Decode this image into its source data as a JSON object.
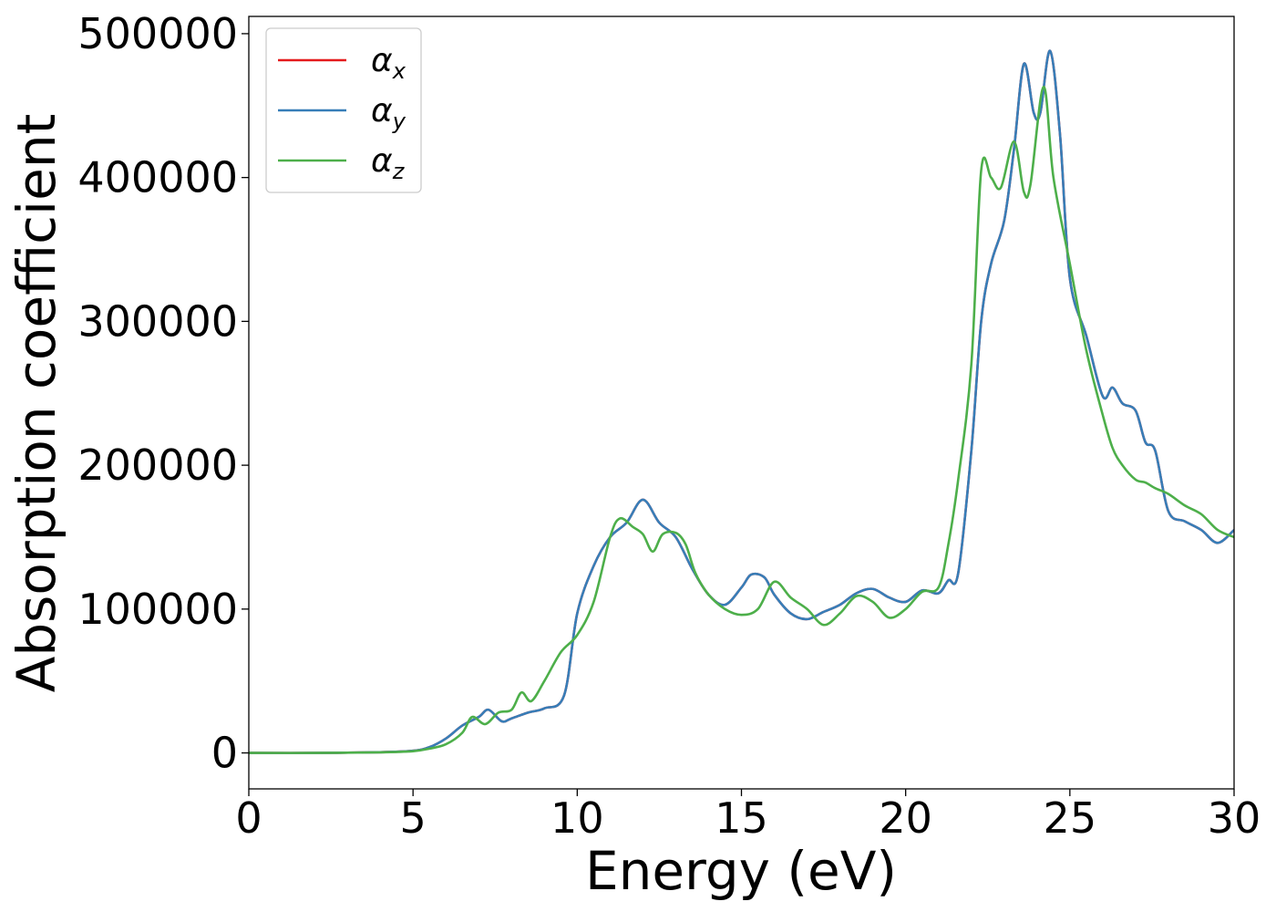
{
  "chart_data": {
    "type": "line",
    "xlabel": "Energy (eV)",
    "ylabel": "Absorption coefficient",
    "xlim": [
      0,
      30
    ],
    "ylim": [
      -25000,
      512000
    ],
    "xticks": [
      0,
      5,
      10,
      15,
      20,
      25,
      30
    ],
    "yticks": [
      0,
      100000,
      200000,
      300000,
      400000,
      500000
    ],
    "grid": false,
    "legend": {
      "position": "top-left",
      "entries": [
        {
          "symbol": "α",
          "sub": "x",
          "color": "#e41a1c"
        },
        {
          "symbol": "α",
          "sub": "y",
          "color": "#377eb8"
        },
        {
          "symbol": "α",
          "sub": "z",
          "color": "#4daf4a"
        }
      ]
    },
    "series": [
      {
        "name": "α_x",
        "color": "#e41a1c",
        "x": [
          0,
          2,
          4,
          5,
          5.5,
          6,
          6.5,
          7,
          7.3,
          7.7,
          8,
          8.5,
          9,
          9.6,
          10,
          10.5,
          11,
          11.5,
          12,
          12.5,
          13,
          13.5,
          14,
          14.5,
          15,
          15.3,
          15.7,
          16,
          16.5,
          17,
          17.5,
          18,
          18.5,
          19,
          19.5,
          20,
          20.5,
          21,
          21.3,
          21.6,
          22,
          22.3,
          22.6,
          23,
          23.3,
          23.6,
          23.9,
          24.1,
          24.4,
          24.7,
          25,
          25.5,
          26,
          26.3,
          26.6,
          27,
          27.3,
          27.6,
          28,
          28.5,
          29,
          29.5,
          30
        ],
        "y": [
          0,
          0,
          500,
          1500,
          4000,
          10000,
          19000,
          25000,
          30000,
          22000,
          24000,
          28000,
          31000,
          40000,
          97000,
          130000,
          150000,
          160000,
          176000,
          160000,
          150000,
          128000,
          110000,
          103000,
          115000,
          124000,
          122000,
          110000,
          97000,
          93000,
          98000,
          103000,
          111000,
          114000,
          108000,
          105000,
          113000,
          111000,
          120000,
          125000,
          210000,
          300000,
          340000,
          370000,
          420000,
          479000,
          445000,
          445000,
          488000,
          430000,
          330000,
          290000,
          248000,
          254000,
          243000,
          238000,
          216000,
          210000,
          168000,
          161000,
          155000,
          146000,
          155000
        ]
      },
      {
        "name": "α_y",
        "color": "#377eb8",
        "x": [
          0,
          2,
          4,
          5,
          5.5,
          6,
          6.5,
          7,
          7.3,
          7.7,
          8,
          8.5,
          9,
          9.6,
          10,
          10.5,
          11,
          11.5,
          12,
          12.5,
          13,
          13.5,
          14,
          14.5,
          15,
          15.3,
          15.7,
          16,
          16.5,
          17,
          17.5,
          18,
          18.5,
          19,
          19.5,
          20,
          20.5,
          21,
          21.3,
          21.6,
          22,
          22.3,
          22.6,
          23,
          23.3,
          23.6,
          23.9,
          24.1,
          24.4,
          24.7,
          25,
          25.5,
          26,
          26.3,
          26.6,
          27,
          27.3,
          27.6,
          28,
          28.5,
          29,
          29.5,
          30
        ],
        "y": [
          0,
          0,
          500,
          1500,
          4000,
          10000,
          19000,
          25000,
          30000,
          22000,
          24000,
          28000,
          31000,
          40000,
          97000,
          130000,
          150000,
          160000,
          176000,
          160000,
          150000,
          128000,
          110000,
          103000,
          115000,
          124000,
          122000,
          110000,
          97000,
          93000,
          98000,
          103000,
          111000,
          114000,
          108000,
          105000,
          113000,
          111000,
          120000,
          125000,
          210000,
          300000,
          340000,
          370000,
          420000,
          479000,
          445000,
          445000,
          488000,
          430000,
          330000,
          290000,
          248000,
          254000,
          243000,
          238000,
          216000,
          210000,
          168000,
          161000,
          155000,
          146000,
          155000
        ]
      },
      {
        "name": "α_z",
        "color": "#4daf4a",
        "x": [
          0,
          2,
          4,
          5,
          5.5,
          6,
          6.5,
          6.8,
          7.2,
          7.6,
          8,
          8.3,
          8.6,
          9,
          9.5,
          10,
          10.5,
          11,
          11.3,
          11.7,
          12,
          12.3,
          12.6,
          13,
          13.3,
          13.6,
          14,
          14.5,
          15,
          15.5,
          16,
          16.5,
          17,
          17.5,
          18,
          18.5,
          19,
          19.5,
          20,
          20.5,
          21,
          21.3,
          21.6,
          22,
          22.3,
          22.6,
          22.9,
          23.3,
          23.6,
          23.8,
          24.2,
          24.5,
          25,
          25.5,
          26,
          26.3,
          26.6,
          27,
          27.3,
          27.6,
          28,
          28.5,
          29,
          29.5,
          30
        ],
        "y": [
          0,
          0,
          400,
          1200,
          3000,
          6000,
          14000,
          25000,
          20000,
          28000,
          30000,
          42000,
          36000,
          50000,
          70000,
          82000,
          105000,
          150000,
          163000,
          157000,
          152000,
          140000,
          152000,
          153000,
          145000,
          125000,
          110000,
          100000,
          96000,
          100000,
          119000,
          108000,
          100000,
          89000,
          97000,
          109000,
          105000,
          94000,
          100000,
          112000,
          115000,
          145000,
          190000,
          270000,
          405000,
          400000,
          393000,
          425000,
          390000,
          395000,
          463000,
          400000,
          340000,
          280000,
          235000,
          212000,
          200000,
          190000,
          188000,
          184000,
          180000,
          172000,
          166000,
          155000,
          150000
        ]
      }
    ]
  }
}
